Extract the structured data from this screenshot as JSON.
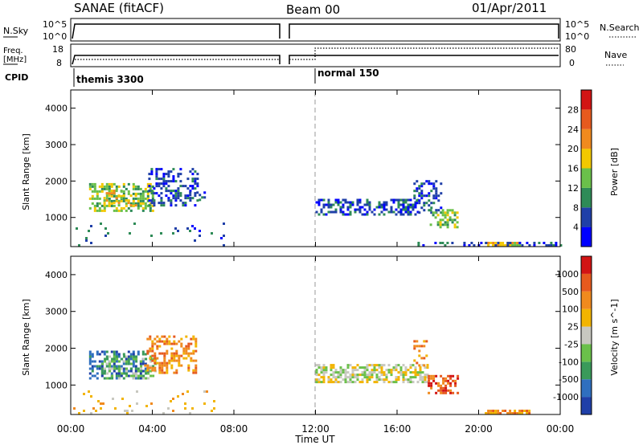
{
  "header": {
    "station": "SANAE (fitACF)",
    "beam": "Beam 00",
    "date": "01/Apr/2011"
  },
  "panels": {
    "nsky": {
      "label": "N.Sky",
      "ticks": [
        "10^5",
        "10^0"
      ],
      "right_label": "N.Search",
      "right_ticks": [
        "10^5",
        "10^0"
      ]
    },
    "freq": {
      "label_line1": "Freq.",
      "label_line2": "[MHz]",
      "ticks": [
        "18",
        "8"
      ],
      "right_label": "Nave",
      "right_ticks": [
        "80",
        "0"
      ]
    },
    "cpid": {
      "label": "CPID",
      "segments": [
        {
          "name": "themis 3300",
          "start_hour": 0
        },
        {
          "name": "normal 150",
          "start_hour": 12
        }
      ]
    }
  },
  "xaxis": {
    "label": "Time UT",
    "ticks": [
      "00:00",
      "04:00",
      "08:00",
      "12:00",
      "16:00",
      "20:00",
      "00:00"
    ]
  },
  "chart_data": [
    {
      "type": "heatmap",
      "name": "power",
      "ylabel": "Slant Range [km]",
      "yticks": [
        1000,
        2000,
        3000,
        4000
      ],
      "ylim": [
        200,
        4500
      ],
      "xlim": [
        0,
        24
      ],
      "colorbar": {
        "label": "Power [dB]",
        "ticks": [
          "4",
          "8",
          "12",
          "16",
          "20",
          "24",
          "28"
        ],
        "colors": [
          "#0000ff",
          "#1f3fa8",
          "#2e8b57",
          "#6ac04a",
          "#f2c800",
          "#f08a1e",
          "#e65a1e",
          "#d21414"
        ]
      },
      "regions": [
        {
          "x0": 0.9,
          "x1": 4.0,
          "y0": 1150,
          "y1": 1900,
          "level": 3,
          "density": 0.55
        },
        {
          "x0": 1.6,
          "x1": 3.2,
          "y0": 1300,
          "y1": 1700,
          "level": 4,
          "density": 0.35
        },
        {
          "x0": 3.8,
          "x1": 6.2,
          "y0": 1300,
          "y1": 2300,
          "level": 1,
          "density": 0.4
        },
        {
          "x0": 5.8,
          "x1": 6.6,
          "y0": 1450,
          "y1": 1650,
          "level": 1,
          "density": 0.3
        },
        {
          "x0": 12.0,
          "x1": 17.0,
          "y0": 1050,
          "y1": 1450,
          "level": 1,
          "density": 0.45
        },
        {
          "x0": 16.8,
          "x1": 18.2,
          "y0": 1100,
          "y1": 2000,
          "level": 1,
          "density": 0.35
        },
        {
          "x0": 17.6,
          "x1": 19.0,
          "y0": 700,
          "y1": 1200,
          "level": 3,
          "density": 0.5
        },
        {
          "x0": 20.3,
          "x1": 22.0,
          "y0": 200,
          "y1": 330,
          "level": 4,
          "density": 0.7
        },
        {
          "x0": 17.0,
          "x1": 24.0,
          "y0": 200,
          "y1": 300,
          "level": 1,
          "density": 0.35
        },
        {
          "x0": 0.0,
          "x1": 7.5,
          "y0": 200,
          "y1": 800,
          "level": 1,
          "density": 0.05
        }
      ]
    },
    {
      "type": "heatmap",
      "name": "velocity",
      "ylabel": "Slant Range [km]",
      "yticks": [
        1000,
        2000,
        3000,
        4000
      ],
      "ylim": [
        200,
        4500
      ],
      "xlim": [
        0,
        24
      ],
      "colorbar": {
        "label": "Velocity [m s^-1]",
        "ticks": [
          "1000",
          "500",
          "100",
          "25",
          "-25",
          "-100",
          "-500",
          "-1000"
        ],
        "colors": [
          "#1f3fa8",
          "#2f6fbf",
          "#3a9a5a",
          "#6ac04a",
          "#c8c8c0",
          "#f2b400",
          "#f08a1e",
          "#e65a1e",
          "#d21414"
        ]
      },
      "regions": [
        {
          "x0": 0.9,
          "x1": 3.8,
          "y0": 1150,
          "y1": 1900,
          "level": 1,
          "density": 0.5
        },
        {
          "x0": 1.5,
          "x1": 4.2,
          "y0": 1150,
          "y1": 1800,
          "level": 3,
          "density": 0.35
        },
        {
          "x0": 3.6,
          "x1": 6.2,
          "y0": 1300,
          "y1": 2300,
          "level": 6,
          "density": 0.4
        },
        {
          "x0": 12.0,
          "x1": 17.5,
          "y0": 1050,
          "y1": 1550,
          "level": 4,
          "density": 0.6
        },
        {
          "x0": 17.5,
          "x1": 19.0,
          "y0": 750,
          "y1": 1250,
          "level": 7,
          "density": 0.55
        },
        {
          "x0": 16.8,
          "x1": 17.4,
          "y0": 1500,
          "y1": 2200,
          "level": 6,
          "density": 0.3
        },
        {
          "x0": 20.3,
          "x1": 22.5,
          "y0": 200,
          "y1": 330,
          "level": 6,
          "density": 0.7
        },
        {
          "x0": 0.0,
          "x1": 7.0,
          "y0": 200,
          "y1": 800,
          "level": 5,
          "density": 0.05
        }
      ]
    }
  ]
}
